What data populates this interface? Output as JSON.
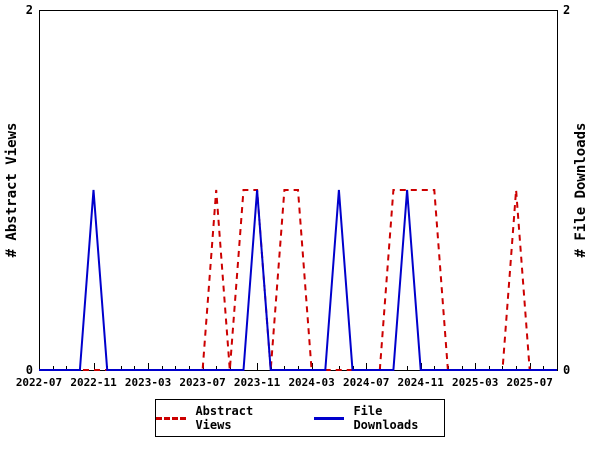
{
  "chart_data": {
    "type": "line",
    "title": "",
    "x": [
      "2022-07",
      "2022-08",
      "2022-09",
      "2022-10",
      "2022-11",
      "2022-12",
      "2023-01",
      "2023-02",
      "2023-03",
      "2023-04",
      "2023-05",
      "2023-06",
      "2023-07",
      "2023-08",
      "2023-09",
      "2023-10",
      "2023-11",
      "2023-12",
      "2024-01",
      "2024-02",
      "2024-03",
      "2024-04",
      "2024-05",
      "2024-06",
      "2024-07",
      "2024-08",
      "2024-09",
      "2024-10",
      "2024-11",
      "2024-12",
      "2025-01",
      "2025-02",
      "2025-03",
      "2025-04",
      "2025-05",
      "2025-06",
      "2025-07",
      "2025-08",
      "2025-09"
    ],
    "series": [
      {
        "name": "Abstract Views",
        "color": "#cc0000",
        "style": "dashed",
        "values": [
          0,
          0,
          0,
          0,
          0,
          0,
          0,
          0,
          0,
          0,
          0,
          0,
          0,
          1,
          0,
          1,
          1,
          0,
          1,
          1,
          0,
          0,
          0,
          0,
          0,
          0,
          1,
          1,
          1,
          1,
          0,
          0,
          0,
          0,
          0,
          1,
          0,
          0,
          0
        ]
      },
      {
        "name": "File Downloads",
        "color": "#0000cc",
        "style": "solid",
        "values": [
          0,
          0,
          0,
          0,
          1,
          0,
          0,
          0,
          0,
          0,
          0,
          0,
          0,
          0,
          0,
          0,
          1,
          0,
          0,
          0,
          0,
          0,
          1,
          0,
          0,
          0,
          0,
          1,
          0,
          0,
          0,
          0,
          0,
          0,
          0,
          0,
          0,
          0,
          0
        ]
      }
    ],
    "ylabel_left": "# Abstract Views",
    "ylabel_right": "# File Downloads",
    "ylim": [
      0,
      2
    ],
    "y_tick_labels": [
      "0",
      "2"
    ],
    "x_tick_labels": [
      "2022-07",
      "2022-11",
      "2023-03",
      "2023-07",
      "2023-11",
      "2024-03",
      "2024-07",
      "2024-11",
      "2025-03",
      "2025-07"
    ],
    "x_tick_every": 4,
    "grid": false,
    "legend_position": "bottom-center"
  },
  "colors": {
    "background": "#ffffff",
    "axis": "#000000",
    "abstract_views": "#cc0000",
    "file_downloads": "#0000cc"
  }
}
